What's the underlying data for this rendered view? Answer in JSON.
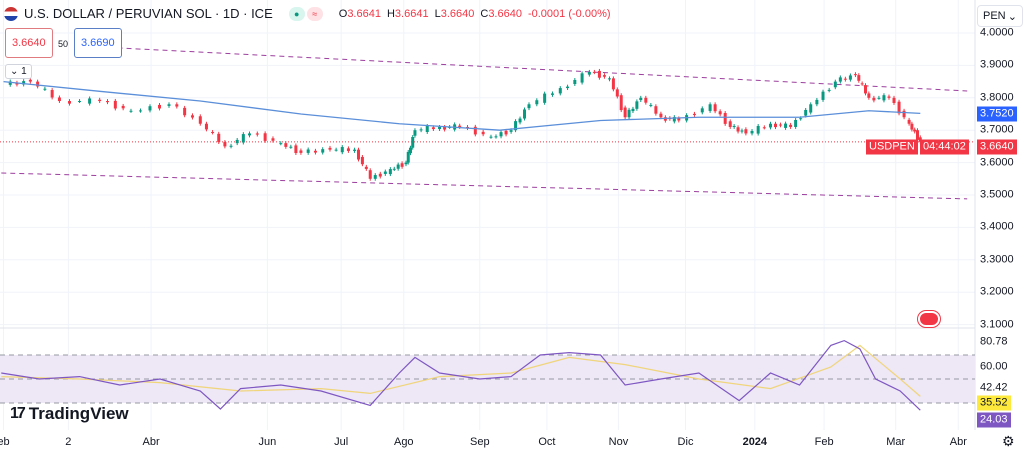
{
  "header": {
    "title": "U.S. DOLLAR / PERUVIAN SOL · 1D · ICE",
    "open_label": "O",
    "open": "3.6641",
    "high_label": "H",
    "high": "3.6641",
    "low_label": "L",
    "low": "3.6640",
    "close_label": "C",
    "close": "3.6640",
    "change": "-0.0001 (-0.00%)",
    "status_icon": "market-closed-dot",
    "compare_icon": "approx-icon"
  },
  "indicator": {
    "value_left": "3.6640",
    "period": "50",
    "value_right": "3.6690",
    "collapse_label": "1"
  },
  "currency_select": {
    "value": "PEN"
  },
  "badges": {
    "ma_value": "3.7520",
    "symbol": "USDPEN",
    "last_price": "3.6640",
    "countdown": "04:44:02",
    "rsi_ma": "35.52",
    "rsi": "24.03"
  },
  "colors": {
    "up": "#089981",
    "down": "#f23645",
    "ma": "#5b8fd9",
    "channel": "#9c3f9e",
    "rsi": "#7e57c2",
    "rsi_ma": "#f0d57a",
    "rsi_band": "#ede7f6"
  },
  "brand": "TradingView",
  "chart_data": [
    {
      "type": "candlestick",
      "ylim": [
        3.1,
        4.0
      ],
      "y_ticks": [
        "4.0000",
        "3.9000",
        "3.8000",
        "3.7000",
        "3.6000",
        "3.5000",
        "3.4000",
        "3.3000",
        "3.2000",
        "3.1000"
      ],
      "x_ticks": [
        {
          "label": "eb",
          "date": "2023-01-30"
        },
        {
          "label": "2",
          "date": "2023-02-28"
        },
        {
          "label": "Abr",
          "date": "2023-04-06"
        },
        {
          "label": "Jun",
          "date": "2023-05-28"
        },
        {
          "label": "Jul",
          "date": "2023-06-30"
        },
        {
          "label": "Ago",
          "date": "2023-07-28"
        },
        {
          "label": "Sep",
          "date": "2023-08-31"
        },
        {
          "label": "Oct",
          "date": "2023-09-30"
        },
        {
          "label": "Nov",
          "date": "2023-11-01"
        },
        {
          "label": "Dic",
          "date": "2023-12-01"
        },
        {
          "label": "2024",
          "date": "2024-01-01"
        },
        {
          "label": "Feb",
          "date": "2024-02-01"
        },
        {
          "label": "Mar",
          "date": "2024-03-04"
        },
        {
          "label": "Abr",
          "date": "2024-04-01"
        }
      ],
      "closes": [
        [
          "2023-01-30",
          3.84
        ],
        [
          "2023-02-11",
          3.85
        ],
        [
          "2023-02-24",
          3.79
        ],
        [
          "2023-03-14",
          3.79
        ],
        [
          "2023-03-28",
          3.76
        ],
        [
          "2023-04-14",
          3.78
        ],
        [
          "2023-04-28",
          3.72
        ],
        [
          "2023-05-09",
          3.65
        ],
        [
          "2023-05-20",
          3.69
        ],
        [
          "2023-06-03",
          3.66
        ],
        [
          "2023-06-12",
          3.63
        ],
        [
          "2023-06-25",
          3.64
        ],
        [
          "2023-07-06",
          3.64
        ],
        [
          "2023-07-13",
          3.55
        ],
        [
          "2023-07-22",
          3.58
        ],
        [
          "2023-07-29",
          3.6
        ],
        [
          "2023-08-02",
          3.7
        ],
        [
          "2023-08-13",
          3.71
        ],
        [
          "2023-08-22",
          3.71
        ],
        [
          "2023-09-05",
          3.68
        ],
        [
          "2023-09-14",
          3.7
        ],
        [
          "2023-09-22",
          3.78
        ],
        [
          "2023-10-06",
          3.83
        ],
        [
          "2023-10-19",
          3.88
        ],
        [
          "2023-10-28",
          3.86
        ],
        [
          "2023-11-04",
          3.74
        ],
        [
          "2023-11-11",
          3.8
        ],
        [
          "2023-11-20",
          3.74
        ],
        [
          "2023-11-28",
          3.73
        ],
        [
          "2023-12-12",
          3.78
        ],
        [
          "2023-12-21",
          3.71
        ],
        [
          "2023-12-28",
          3.69
        ],
        [
          "2024-01-08",
          3.72
        ],
        [
          "2024-01-17",
          3.71
        ],
        [
          "2024-01-26",
          3.78
        ],
        [
          "2024-02-06",
          3.85
        ],
        [
          "2024-02-15",
          3.87
        ],
        [
          "2024-02-21",
          3.8
        ],
        [
          "2024-03-01",
          3.8
        ],
        [
          "2024-03-10",
          3.72
        ],
        [
          "2024-03-15",
          3.664
        ]
      ],
      "ma50": {
        "period": 50,
        "points": [
          [
            "2023-01-30",
            3.85
          ],
          [
            "2023-03-14",
            3.82
          ],
          [
            "2023-04-28",
            3.79
          ],
          [
            "2023-06-12",
            3.75
          ],
          [
            "2023-07-26",
            3.72
          ],
          [
            "2023-09-09",
            3.7
          ],
          [
            "2023-10-24",
            3.73
          ],
          [
            "2023-12-07",
            3.74
          ],
          [
            "2024-01-21",
            3.74
          ],
          [
            "2024-02-21",
            3.76
          ],
          [
            "2024-03-15",
            3.752
          ]
        ]
      },
      "channel": {
        "upper": [
          [
            "2023-03-22",
            3.954
          ],
          [
            "2024-04-05",
            3.821
          ]
        ],
        "lower": [
          [
            "2023-01-29",
            3.568
          ],
          [
            "2024-04-05",
            3.488
          ]
        ]
      },
      "last_price": 3.664
    },
    {
      "type": "line",
      "name": "RSI",
      "ylim": [
        18,
        84
      ],
      "y_ticks": [
        "80.78",
        "60.00",
        "42.42"
      ],
      "bands": [
        30,
        50,
        70
      ],
      "rsi": [
        [
          "2023-01-29",
          55
        ],
        [
          "2023-02-15",
          50
        ],
        [
          "2023-03-05",
          52
        ],
        [
          "2023-03-23",
          45
        ],
        [
          "2023-04-10",
          50
        ],
        [
          "2023-04-28",
          40
        ],
        [
          "2023-05-07",
          25
        ],
        [
          "2023-05-16",
          42
        ],
        [
          "2023-06-03",
          45
        ],
        [
          "2023-06-21",
          40
        ],
        [
          "2023-07-13",
          28
        ],
        [
          "2023-07-26",
          55
        ],
        [
          "2023-08-02",
          68
        ],
        [
          "2023-08-13",
          55
        ],
        [
          "2023-08-31",
          50
        ],
        [
          "2023-09-14",
          52
        ],
        [
          "2023-09-27",
          70
        ],
        [
          "2023-10-10",
          72
        ],
        [
          "2023-10-24",
          70
        ],
        [
          "2023-11-04",
          45
        ],
        [
          "2023-11-20",
          50
        ],
        [
          "2023-12-07",
          55
        ],
        [
          "2023-12-25",
          32
        ],
        [
          "2024-01-08",
          55
        ],
        [
          "2024-01-21",
          45
        ],
        [
          "2024-02-04",
          78
        ],
        [
          "2024-02-10",
          82
        ],
        [
          "2024-02-17",
          75
        ],
        [
          "2024-02-24",
          50
        ],
        [
          "2024-03-06",
          40
        ],
        [
          "2024-03-15",
          24.03
        ]
      ],
      "rsi_ma": [
        [
          "2023-01-29",
          52
        ],
        [
          "2023-03-05",
          50
        ],
        [
          "2023-04-10",
          47
        ],
        [
          "2023-05-16",
          40
        ],
        [
          "2023-06-21",
          42
        ],
        [
          "2023-07-13",
          38
        ],
        [
          "2023-08-13",
          52
        ],
        [
          "2023-09-14",
          55
        ],
        [
          "2023-10-10",
          68
        ],
        [
          "2023-11-04",
          62
        ],
        [
          "2023-12-07",
          50
        ],
        [
          "2024-01-08",
          42
        ],
        [
          "2024-02-04",
          60
        ],
        [
          "2024-02-17",
          78
        ],
        [
          "2024-03-06",
          50
        ],
        [
          "2024-03-15",
          35.52
        ]
      ]
    }
  ]
}
